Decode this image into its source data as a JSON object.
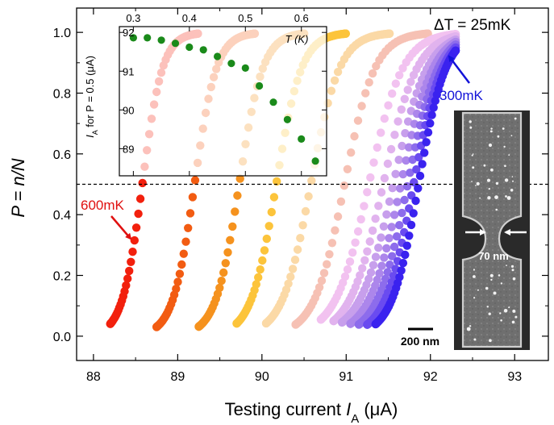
{
  "chart_data": {
    "type": "scatter",
    "xlabel": {
      "main": "Testing current ",
      "var": "I",
      "sub": "A",
      "unit": " (μA)"
    },
    "ylabel": "P = n/N",
    "xlim": [
      87.8,
      93.4
    ],
    "ylim": [
      -0.08,
      1.08
    ],
    "xticks": [
      "88",
      "89",
      "90",
      "91",
      "92",
      "93"
    ],
    "yticks": [
      "0.0",
      "0.2",
      "0.4",
      "0.6",
      "0.8",
      "1.0"
    ],
    "threshold_line_y": 0.5,
    "temperature_step_label": "ΔT = 25mK",
    "annotation_high": "600mK",
    "annotation_low": "300mK",
    "series": [
      {
        "temp_mK": 600,
        "center": 88.58,
        "width": 0.12,
        "x_start": 88.2,
        "color": "#f2200d"
      },
      {
        "temp_mK": 575,
        "center": 89.2,
        "width": 0.13,
        "x_start": 88.75,
        "color": "#f25c12"
      },
      {
        "temp_mK": 550,
        "center": 89.73,
        "width": 0.14,
        "x_start": 89.25,
        "color": "#f5921e"
      },
      {
        "temp_mK": 525,
        "center": 90.17,
        "width": 0.15,
        "x_start": 89.7,
        "color": "#fcc43b"
      },
      {
        "temp_mK": 500,
        "center": 90.58,
        "width": 0.17,
        "x_start": 90.05,
        "color": "#fbd9a6"
      },
      {
        "temp_mK": 475,
        "center": 90.98,
        "width": 0.18,
        "x_start": 90.4,
        "color": "#f6c1b4"
      },
      {
        "temp_mK": 450,
        "center": 91.27,
        "width": 0.2,
        "x_start": 90.7,
        "color": "#f2c2f0"
      },
      {
        "temp_mK": 425,
        "center": 91.44,
        "width": 0.2,
        "x_start": 90.85,
        "color": "#e1b3ee"
      },
      {
        "temp_mK": 400,
        "center": 91.56,
        "width": 0.2,
        "x_start": 90.95,
        "color": "#c79fec"
      },
      {
        "temp_mK": 375,
        "center": 91.65,
        "width": 0.19,
        "x_start": 91.05,
        "color": "#ac86eb"
      },
      {
        "temp_mK": 350,
        "center": 91.73,
        "width": 0.18,
        "x_start": 91.15,
        "color": "#8d6cec"
      },
      {
        "temp_mK": 325,
        "center": 91.8,
        "width": 0.17,
        "x_start": 91.25,
        "color": "#6a4bf0"
      },
      {
        "temp_mK": 300,
        "center": 91.86,
        "width": 0.16,
        "x_start": 91.35,
        "color": "#3a22ef"
      }
    ],
    "inset": {
      "type": "scatter",
      "xlabel": "T (K)",
      "ylabel": {
        "var": "I",
        "sub": "A",
        "rest": " for P = 0.5 (μA)"
      },
      "xlim": [
        0.275,
        0.645
      ],
      "ylim": [
        88.3,
        92.15
      ],
      "xticks": [
        "0.3",
        "0.4",
        "0.5",
        "0.6"
      ],
      "yticks": [
        "89",
        "90",
        "91",
        "92"
      ],
      "color": "#1a8a1a",
      "points": [
        {
          "T": 0.3,
          "I": 91.86
        },
        {
          "T": 0.325,
          "I": 91.86
        },
        {
          "T": 0.35,
          "I": 91.8
        },
        {
          "T": 0.375,
          "I": 91.72
        },
        {
          "T": 0.4,
          "I": 91.62
        },
        {
          "T": 0.425,
          "I": 91.55
        },
        {
          "T": 0.45,
          "I": 91.38
        },
        {
          "T": 0.475,
          "I": 91.2
        },
        {
          "T": 0.5,
          "I": 91.08
        },
        {
          "T": 0.525,
          "I": 90.62
        },
        {
          "T": 0.55,
          "I": 90.2
        },
        {
          "T": 0.575,
          "I": 89.75
        },
        {
          "T": 0.6,
          "I": 89.25
        },
        {
          "T": 0.625,
          "I": 88.68
        }
      ]
    },
    "micrograph": {
      "width_label": "70 nm",
      "scale_bar_label": "200 nm"
    }
  }
}
